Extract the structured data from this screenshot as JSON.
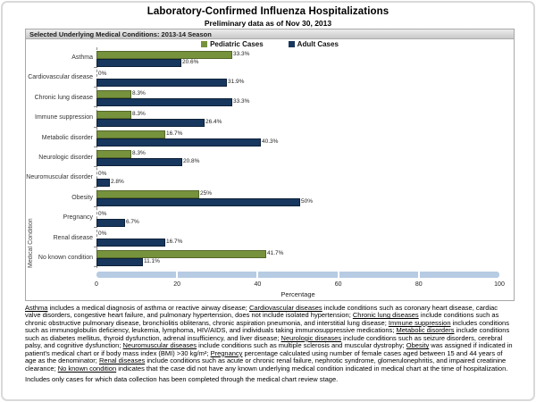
{
  "page": {
    "title": "Laboratory-Confirmed Influenza Hospitalizations",
    "subtitle": "Preliminary data as of Nov 30, 2013"
  },
  "chart_header": "Selected Underlying Medical Conditions: 2013-14 Season",
  "legend": [
    {
      "label": "Pediatric Cases",
      "color": "#76923C"
    },
    {
      "label": "Adult Cases",
      "color": "#17375E"
    }
  ],
  "chart_data": {
    "type": "bar",
    "orientation": "horizontal",
    "title": "Selected Underlying Medical Conditions: 2013-14 Season",
    "categories": [
      "Asthma",
      "Cardiovascular disease",
      "Chronic lung disease",
      "Immune suppression",
      "Metabolic disorder",
      "Neurologic disorder",
      "Neuromuscular disorder",
      "Obesity",
      "Pregnancy",
      "Renal disease",
      "No known condition"
    ],
    "series": [
      {
        "name": "Pediatric Cases",
        "color": "#76923C",
        "values": [
          33.3,
          0,
          8.3,
          8.3,
          16.7,
          8.3,
          0,
          25,
          0,
          0,
          41.7
        ],
        "labels": [
          "33.3%",
          "0%",
          "8.3%",
          "8.3%",
          "16.7%",
          "8.3%",
          "0%",
          "25%",
          "0%",
          "0%",
          "41.7%"
        ]
      },
      {
        "name": "Adult Cases",
        "color": "#17375E",
        "values": [
          20.6,
          31.9,
          33.3,
          26.4,
          40.3,
          20.8,
          2.8,
          50,
          6.7,
          16.7,
          11.1
        ],
        "labels": [
          "20.6%",
          "31.9%",
          "33.3%",
          "26.4%",
          "40.3%",
          "20.8%",
          "2.8%",
          "50%",
          "6.7%",
          "16.7%",
          "11.1%"
        ]
      }
    ],
    "xlabel": "Percentage",
    "ylabel": "Medical Condition",
    "xlim": [
      0,
      100
    ],
    "xticks": [
      0,
      20,
      40,
      60,
      80,
      100
    ],
    "grid": false,
    "legend_position": "top"
  },
  "scrollbar": {
    "color": "#b7cbe3",
    "segments": 5
  },
  "footnotes": {
    "definitions": [
      {
        "term": "Asthma",
        "text": " includes a medical diagnosis of asthma or reactive airway disease; "
      },
      {
        "term": "Cardiovascular diseases",
        "text": " include conditions such as coronary heart disease, cardiac valve disorders, congestive heart failure, and pulmonary hypertension, does not include isolated hypertension;  "
      },
      {
        "term": "Chronic lung diseases",
        "text": " include conditions such as chronic obstructive pulmonary disease, bronchiolitis obliterans, chronic aspiration pneumonia, and interstitial lung disease;  "
      },
      {
        "term": "Immune suppression",
        "text": " includes conditions such as immunoglobulin deficiency, leukemia, lymphoma, HIV/AIDS, and individuals taking immunosuppressive medications;  "
      },
      {
        "term": "Metabolic disorders",
        "text": " include conditions such as diabetes mellitus, thyroid dysfunction, adrenal insufficiency, and liver disease;  "
      },
      {
        "term": "Neurologic diseases",
        "text": " include conditions such as seizure disorders, cerebral palsy, and cognitive dysfunction;  "
      },
      {
        "term": "Neuromuscular diseases",
        "text": " include conditions such as multiple sclerosis and muscular dystrophy;  "
      },
      {
        "term": "Obesity",
        "text": " was assigned if indicated in patient's medical chart or if body mass index (BMI) >30 kg/m²;  "
      },
      {
        "term": "Pregnancy",
        "text": " percentage calculated using number of female cases aged between 15 and 44 years of age as the denominator;  "
      },
      {
        "term": "Renal diseases",
        "text": " include conditions such as acute or chronic renal failure, nephrotic syndrome, glomerulonephritis, and impaired creatinine clearance;  "
      },
      {
        "term": "No known condition",
        "text": " indicates that the case did not have any known underlying medical condition indicated in medical chart at the time of hospitalization."
      }
    ],
    "note": "Includes only cases for which data collection has been completed through the medical chart review stage."
  }
}
